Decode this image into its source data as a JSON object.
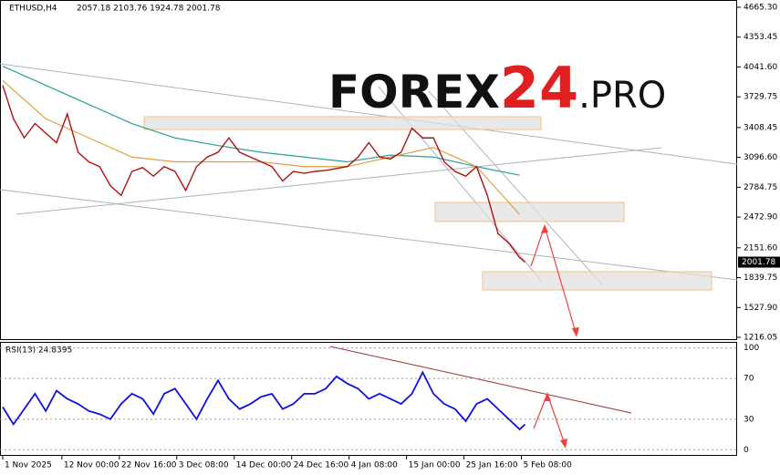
{
  "header": {
    "symbol": "ETHUSD,H4",
    "ohlc": "2057.18 2103.76 1924.78 2001.78"
  },
  "logo": {
    "brand": "FOREX",
    "number": "24",
    "suffix": ".PRO"
  },
  "rsi_header": "RSI(13) 24.8395",
  "chart_data": [
    {
      "type": "line",
      "x": [
        0,
        2,
        4,
        6,
        8,
        10,
        12,
        14,
        16,
        18,
        20,
        22,
        24,
        26,
        28,
        30,
        32,
        34,
        36,
        38,
        40,
        42,
        44,
        46,
        48,
        50,
        52,
        54,
        56,
        58,
        60,
        62,
        64,
        66,
        68,
        70,
        72,
        74,
        76,
        78,
        80,
        82,
        84,
        86,
        88,
        90,
        92,
        94,
        96,
        97
      ],
      "xlim": [
        -0.5,
        136.4
      ],
      "xticks": [
        {
          "value": 0,
          "label": "1 Nov 2025"
        },
        {
          "value": 11,
          "label": "12 Nov 00:00"
        },
        {
          "value": 21.67,
          "label": "22 Nov 16:00"
        },
        {
          "value": 32.33,
          "label": "3 Dec 08:00"
        },
        {
          "value": 43,
          "label": "14 Dec 00:00"
        },
        {
          "value": 53.67,
          "label": "24 Dec 16:00"
        },
        {
          "value": 64.33,
          "label": "4 Jan 08:00"
        },
        {
          "value": 75,
          "label": "15 Jan 00:00"
        },
        {
          "value": 85.67,
          "label": "25 Jan 16:00"
        },
        {
          "value": 96.33,
          "label": "5 Feb 08:00"
        }
      ],
      "ylim": [
        1197,
        4722
      ],
      "yticks": [
        {
          "value": 4665.3,
          "label": "4665.30"
        },
        4353.45,
        {
          "value": 4041.6,
          "label": "4041.60"
        },
        3729.75,
        3408.45,
        {
          "value": 3096.6,
          "label": "3096.60"
        },
        2784.75,
        {
          "value": 2472.9,
          "label": "2472.90"
        },
        {
          "value": 2151.6,
          "label": "2151.60"
        },
        1839.75,
        {
          "value": 1527.9,
          "label": "1527.90"
        },
        1216.05
      ],
      "series": [
        {
          "color": "#b01010",
          "values": [
            3850,
            3500,
            3300,
            3450,
            3350,
            3250,
            3550,
            3150,
            3050,
            3000,
            2800,
            2700,
            2950,
            2990,
            2900,
            3000,
            2950,
            2750,
            3000,
            3100,
            3150,
            3300,
            3150,
            3100,
            3050,
            3000,
            2850,
            2950,
            2930,
            2950,
            2960,
            2980,
            3000,
            3100,
            3250,
            3100,
            3080,
            3150,
            3400,
            3300,
            3300,
            3050,
            2950,
            2900,
            3000,
            2700,
            2300,
            2200,
            2050,
            2001.78
          ]
        }
      ],
      "averages_x": [
        0,
        8,
        16,
        24,
        32,
        40,
        48,
        56,
        64,
        72,
        80,
        88,
        96
      ],
      "averages": [
        {
          "color": "#2aa198",
          "values": [
            4050,
            3850,
            3650,
            3450,
            3300,
            3220,
            3150,
            3100,
            3050,
            3120,
            3100,
            3000,
            2910
          ]
        },
        {
          "color": "#e0a040",
          "values": [
            3900,
            3500,
            3300,
            3100,
            3050,
            3050,
            3050,
            3000,
            3000,
            3100,
            3200,
            3000,
            2500
          ]
        }
      ]
    },
    {
      "type": "line",
      "ylim": [
        -6,
        105
      ],
      "yticks": [
        100,
        70,
        30,
        0
      ],
      "series": [
        {
          "color": "#1010e0",
          "values": [
            42,
            25,
            40,
            55,
            38,
            58,
            50,
            45,
            38,
            35,
            30,
            45,
            55,
            50,
            35,
            55,
            60,
            45,
            30,
            50,
            68,
            50,
            40,
            45,
            52,
            55,
            40,
            45,
            55,
            55,
            60,
            72,
            65,
            60,
            50,
            55,
            50,
            45,
            55,
            76,
            55,
            45,
            40,
            28,
            45,
            50,
            40,
            30,
            20,
            24.8395
          ]
        }
      ]
    }
  ]
}
